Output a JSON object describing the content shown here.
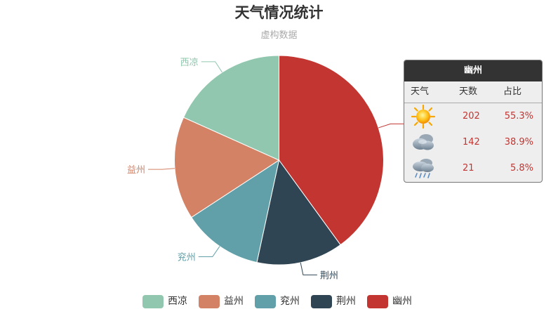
{
  "chart_data": {
    "type": "pie",
    "title": "天气情况统计",
    "subtitle": "虚构数据",
    "slices": [
      {
        "name": "西凉",
        "value": 18.3,
        "color": "#91c7ae"
      },
      {
        "name": "益州",
        "value": 15.9,
        "color": "#d48265"
      },
      {
        "name": "兖州",
        "value": 12.4,
        "color": "#61a0a8"
      },
      {
        "name": "荆州",
        "value": 13.4,
        "color": "#2f4554"
      },
      {
        "name": "幽州",
        "value": 40.0,
        "color": "#c23531"
      }
    ],
    "legend": {
      "position": "bottom",
      "items": [
        "西凉",
        "益州",
        "兖州",
        "荆州",
        "幽州"
      ]
    },
    "rich_label": {
      "series": "幽州",
      "header": "幽州",
      "columns": [
        "天气",
        "天数",
        "占比"
      ],
      "rows": [
        {
          "icon": "sunny-icon",
          "days": "202",
          "percent": "55.3%"
        },
        {
          "icon": "cloudy-icon",
          "days": "142",
          "percent": "38.9%"
        },
        {
          "icon": "showers-icon",
          "days": "21",
          "percent": "5.8%"
        }
      ]
    }
  }
}
